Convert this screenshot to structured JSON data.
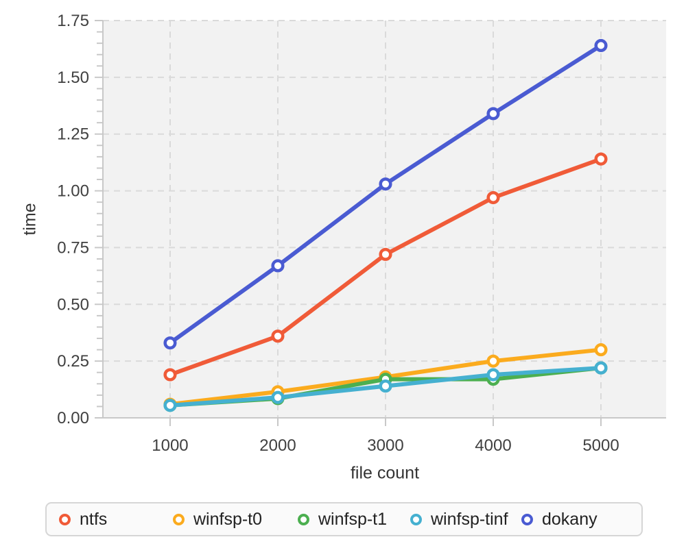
{
  "colors": {
    "page_bg": "#ffffff",
    "plot_bg": "#f2f2f2",
    "grid": "#dadada",
    "axis": "#c8c8c8",
    "tick_label": "#404040",
    "axis_title": "#333333",
    "legend_border": "#d6d6d6",
    "legend_bg": "#fafafa",
    "legend_text": "#222222"
  },
  "chart_data": {
    "type": "line",
    "title": "",
    "xlabel": "file count",
    "ylabel": "time",
    "grid": true,
    "legend_position": "bottom",
    "x": [
      1000,
      2000,
      3000,
      4000,
      5000
    ],
    "series": [
      {
        "name": "ntfs",
        "color": "#f05b38",
        "values": [
          0.19,
          0.36,
          0.72,
          0.97,
          1.14
        ]
      },
      {
        "name": "winfsp-t0",
        "color": "#fbab1e",
        "values": [
          0.06,
          0.115,
          0.18,
          0.25,
          0.3
        ]
      },
      {
        "name": "winfsp-t1",
        "color": "#4caf50",
        "values": [
          0.055,
          0.085,
          0.17,
          0.17,
          0.22
        ]
      },
      {
        "name": "winfsp-tinf",
        "color": "#45b0d0",
        "values": [
          0.055,
          0.09,
          0.14,
          0.19,
          0.22
        ]
      },
      {
        "name": "dokany",
        "color": "#4a5bd2",
        "values": [
          0.33,
          0.67,
          1.03,
          1.34,
          1.64
        ]
      }
    ],
    "axes": {
      "xlim": [
        376,
        5605
      ],
      "ylim": [
        0,
        1.75
      ],
      "x_ticks": [
        1000,
        2000,
        3000,
        4000,
        5000
      ],
      "x_tick_labels": [
        "1000",
        "2000",
        "3000",
        "4000",
        "5000"
      ],
      "y_ticks": [
        0,
        0.25,
        0.5,
        0.75,
        1.0,
        1.25,
        1.5,
        1.75
      ],
      "y_tick_labels": [
        "0.00",
        "0.25",
        "0.50",
        "0.75",
        "1.00",
        "1.25",
        "1.50",
        "1.75"
      ],
      "y_minor_step": 0.05
    }
  }
}
